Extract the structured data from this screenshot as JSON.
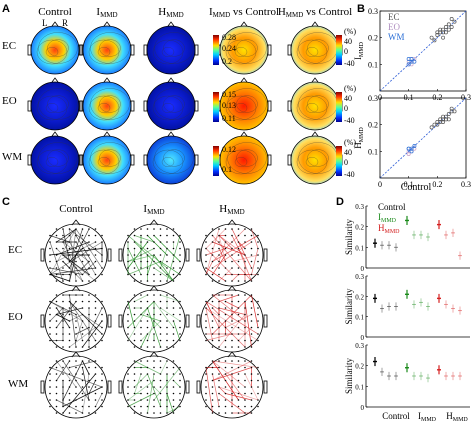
{
  "panels": {
    "a": "A",
    "b": "B",
    "c": "C",
    "d": "D"
  },
  "panel_a": {
    "columns": [
      "Control",
      "I",
      "H",
      "I",
      "H"
    ],
    "column_subs": [
      "",
      "MMD",
      "MMD",
      "MMD",
      "MMD"
    ],
    "column_suffix": [
      "",
      "",
      "",
      " vs Control",
      " vs Control"
    ],
    "rows": [
      "EC",
      "EO",
      "WM"
    ],
    "lr": [
      "L",
      "R"
    ],
    "unit": "(%)",
    "scales": [
      {
        "row": "EC",
        "ticks": [
          "0.28",
          "0.24",
          "0.2"
        ]
      },
      {
        "row": "EO",
        "ticks": [
          "0.15",
          "0.13",
          "0.11"
        ]
      },
      {
        "row": "WM",
        "ticks": [
          "0.12",
          "0.1"
        ]
      }
    ],
    "diff_ticks": [
      "40",
      "0",
      "-40"
    ]
  },
  "chart_data": [
    {
      "type": "scatter",
      "panel": "B-top",
      "ylabel": "I_MMD",
      "xlim": [
        0,
        0.3
      ],
      "ylim": [
        0,
        0.3
      ],
      "xticks": [
        "0",
        "0.1",
        "0.2",
        "0.3"
      ],
      "yticks": [
        "0.1",
        "0.2",
        "0.3"
      ],
      "legend": [
        "EC",
        "EO",
        "WM"
      ],
      "legend_colors": [
        "#555555",
        "#c8a2c8",
        "#2b6fd6"
      ],
      "series": [
        {
          "name": "EC",
          "points": [
            [
              0.18,
              0.2
            ],
            [
              0.2,
              0.21
            ],
            [
              0.21,
              0.22
            ],
            [
              0.22,
              0.23
            ],
            [
              0.23,
              0.22
            ],
            [
              0.24,
              0.25
            ],
            [
              0.25,
              0.24
            ],
            [
              0.22,
              0.2
            ],
            [
              0.19,
              0.19
            ],
            [
              0.23,
              0.24
            ],
            [
              0.26,
              0.26
            ],
            [
              0.21,
              0.23
            ],
            [
              0.24,
              0.23
            ],
            [
              0.2,
              0.22
            ],
            [
              0.25,
              0.27
            ],
            [
              0.22,
              0.22
            ]
          ]
        },
        {
          "name": "EO",
          "points": [
            [
              0.1,
              0.11
            ],
            [
              0.11,
              0.12
            ],
            [
              0.1,
              0.1
            ],
            [
              0.12,
              0.12
            ],
            [
              0.11,
              0.1
            ]
          ]
        },
        {
          "name": "WM",
          "points": [
            [
              0.1,
              0.1
            ],
            [
              0.11,
              0.11
            ],
            [
              0.1,
              0.12
            ],
            [
              0.12,
              0.11
            ],
            [
              0.11,
              0.12
            ]
          ]
        }
      ]
    },
    {
      "type": "scatter",
      "panel": "B-bottom",
      "xlabel": "Control",
      "ylabel": "H_MMD",
      "xlim": [
        0,
        0.3
      ],
      "ylim": [
        0,
        0.3
      ],
      "xticks": [
        "0",
        "0.1",
        "0.2",
        "0.3"
      ],
      "yticks": [
        "0.1",
        "0.2",
        "0.3"
      ],
      "series": [
        {
          "name": "EC",
          "points": [
            [
              0.18,
              0.19
            ],
            [
              0.2,
              0.2
            ],
            [
              0.21,
              0.21
            ],
            [
              0.22,
              0.22
            ],
            [
              0.23,
              0.22
            ],
            [
              0.24,
              0.24
            ],
            [
              0.25,
              0.25
            ],
            [
              0.22,
              0.21
            ],
            [
              0.19,
              0.2
            ],
            [
              0.23,
              0.23
            ],
            [
              0.26,
              0.25
            ],
            [
              0.21,
              0.22
            ],
            [
              0.24,
              0.22
            ],
            [
              0.2,
              0.21
            ],
            [
              0.25,
              0.26
            ],
            [
              0.22,
              0.23
            ]
          ]
        },
        {
          "name": "EO",
          "points": [
            [
              0.1,
              0.1
            ],
            [
              0.11,
              0.11
            ],
            [
              0.1,
              0.09
            ],
            [
              0.12,
              0.11
            ],
            [
              0.11,
              0.1
            ]
          ]
        },
        {
          "name": "WM",
          "points": [
            [
              0.1,
              0.11
            ],
            [
              0.11,
              0.1
            ],
            [
              0.1,
              0.11
            ],
            [
              0.12,
              0.12
            ],
            [
              0.11,
              0.11
            ]
          ]
        }
      ]
    },
    {
      "type": "errorbar",
      "panel": "D",
      "ylabel": "Similarity",
      "yticks": [
        "0",
        "0.1",
        "0.2",
        "0.3"
      ],
      "ylim": [
        0,
        0.3
      ],
      "xlabels": [
        "Control",
        "I",
        "H"
      ],
      "xlabel_subs": [
        "",
        "MMD",
        "MMD"
      ],
      "legend": [
        "Control",
        "I",
        "H"
      ],
      "legend_subs": [
        "",
        "MMD",
        "MMD"
      ],
      "group_colors": [
        "#000000",
        "#1a8a1a",
        "#d42020"
      ],
      "rows": [
        {
          "name": "EC",
          "groups": [
            [
              0.12,
              0.11,
              0.11,
              0.1
            ],
            [
              0.23,
              0.16,
              0.16,
              0.15
            ],
            [
              0.21,
              0.16,
              0.17,
              0.06
            ]
          ]
        },
        {
          "name": "EO",
          "groups": [
            [
              0.19,
              0.14,
              0.15,
              0.15
            ],
            [
              0.21,
              0.16,
              0.17,
              0.15
            ],
            [
              0.19,
              0.16,
              0.14,
              0.13
            ]
          ]
        },
        {
          "name": "WM",
          "groups": [
            [
              0.22,
              0.17,
              0.15,
              0.15
            ],
            [
              0.19,
              0.15,
              0.15,
              0.14
            ],
            [
              0.18,
              0.15,
              0.15,
              0.15
            ]
          ]
        }
      ]
    }
  ],
  "panel_c": {
    "columns": [
      "Control",
      "I",
      "H"
    ],
    "column_subs": [
      "",
      "MMD",
      "MMD"
    ],
    "rows": [
      "EC",
      "EO",
      "WM"
    ],
    "colors": [
      "#000000",
      "#1a8a1a",
      "#d42020"
    ]
  }
}
